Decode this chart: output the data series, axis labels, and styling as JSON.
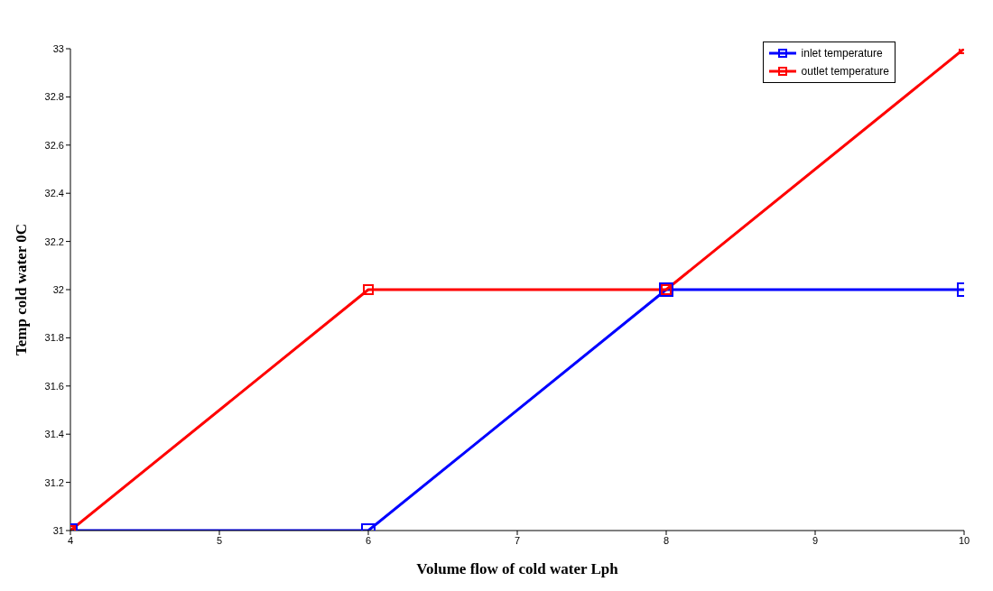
{
  "chart_data": {
    "type": "line",
    "xlabel": "Volume flow of cold water Lph",
    "ylabel": "Temp cold water 0C",
    "x": [
      4,
      6,
      8,
      10
    ],
    "series": [
      {
        "name": "inlet temperature",
        "color": "#0000ff",
        "values": [
          31,
          31,
          32,
          32
        ]
      },
      {
        "name": "outlet temperature",
        "color": "#ff0000",
        "values": [
          31,
          32,
          32,
          33
        ]
      }
    ],
    "xlim": [
      4,
      10
    ],
    "xticks": [
      4,
      5,
      6,
      7,
      8,
      9,
      10
    ],
    "ylim": [
      31,
      33
    ],
    "yticks": [
      31,
      31.2,
      31.4,
      31.6,
      31.8,
      32,
      32.2,
      32.4,
      32.6,
      32.8,
      33
    ],
    "grid": false,
    "legend": "top right",
    "marker": "square",
    "line_style": "solid"
  }
}
